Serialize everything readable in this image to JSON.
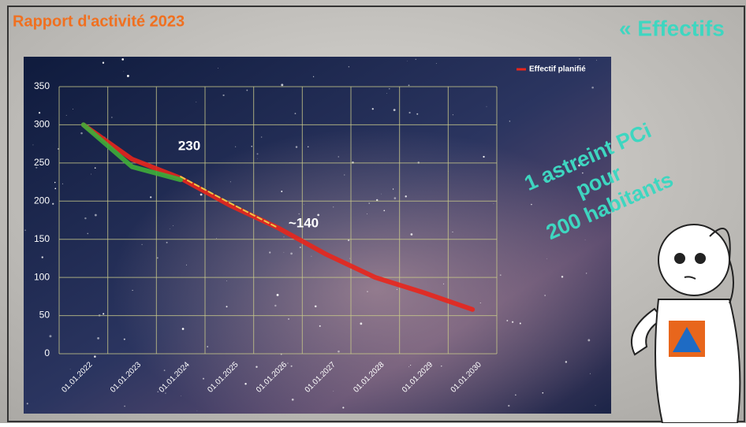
{
  "slide_title": "Rapport d'activité 2023",
  "heading": "« Effectifs",
  "callout": [
    "1 astreint PCi",
    "pour",
    "200 habitants"
  ],
  "chart_data": {
    "type": "line",
    "categories": [
      "01.01.2022",
      "01.01.2023",
      "01.01.2024",
      "01.01.2025",
      "01.01.2026",
      "01.01.2027",
      "01.01.2028",
      "01.01.2029",
      "01.01.2030"
    ],
    "series": [
      {
        "name": "Effectif planifié",
        "color": "#e8261c",
        "values": [
          300,
          255,
          230,
          195,
          165,
          130,
          100,
          80,
          58
        ]
      },
      {
        "color": "#3fae3a",
        "values": [
          300,
          245,
          228,
          null,
          null,
          null,
          null,
          null,
          null
        ]
      },
      {
        "color": "#f0d84a",
        "values": [
          null,
          null,
          232,
          198,
          165,
          null,
          null,
          null,
          null
        ]
      }
    ],
    "annotations": [
      "230",
      "~140"
    ],
    "ylim": [
      0,
      350
    ],
    "yticks": [
      0,
      50,
      100,
      150,
      200,
      250,
      300,
      350
    ],
    "grid": true,
    "legend": "top-right"
  }
}
